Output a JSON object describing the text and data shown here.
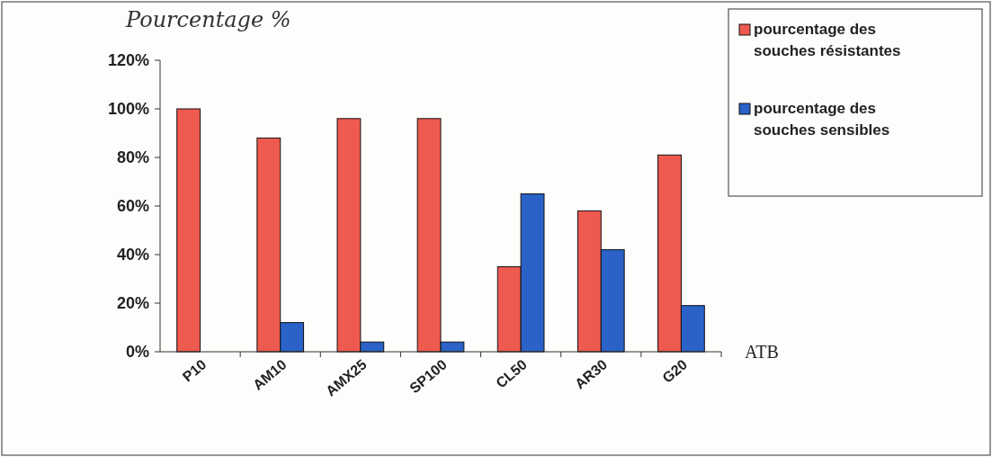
{
  "chart_data": {
    "type": "bar",
    "ylabel": "Pourcentage %",
    "xlabel": "ATB",
    "categories": [
      "P10",
      "AM10",
      "AMX25",
      "SP100",
      "CL50",
      "AR30",
      "G20"
    ],
    "series": [
      {
        "name": "pourcentage des souches résistantes",
        "color": "#ee5a4f",
        "values": [
          100,
          88,
          96,
          96,
          35,
          58,
          81
        ]
      },
      {
        "name": "pourcentage des souches sensibles",
        "color": "#2a62c8",
        "values": [
          0,
          12,
          4,
          4,
          65,
          42,
          19
        ]
      }
    ],
    "ylim": [
      0,
      120
    ],
    "yticks": [
      {
        "value": 0,
        "label": "0%"
      },
      {
        "value": 20,
        "label": "20%"
      },
      {
        "value": 40,
        "label": "40%"
      },
      {
        "value": 60,
        "label": "60%"
      },
      {
        "value": 80,
        "label": "80%"
      },
      {
        "value": 100,
        "label": "100%"
      },
      {
        "value": 120,
        "label": "120%"
      }
    ],
    "legend": "right",
    "grid": false
  }
}
